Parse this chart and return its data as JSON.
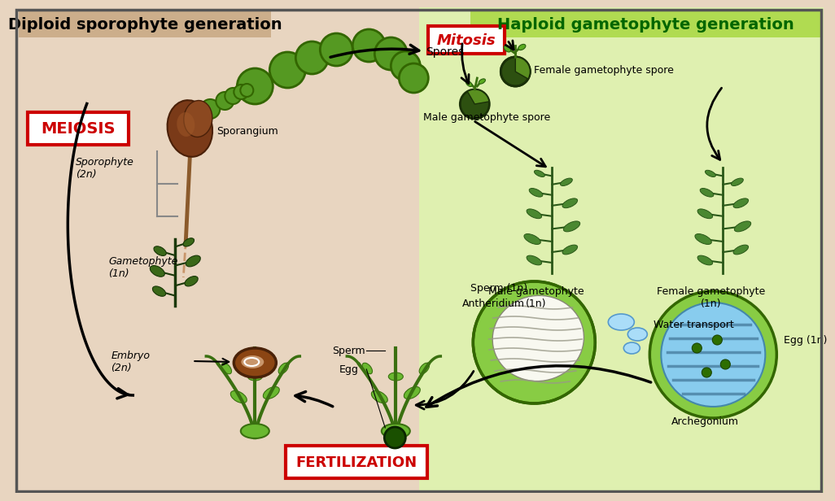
{
  "left_bg_color": "#e8d5c0",
  "right_bg_color": "#dff0b0",
  "left_title": "Diploid sporophyte generation",
  "right_title": "Haploid gametophyte generation",
  "left_title_bg": "#c8a882",
  "right_title_bg": "#a8d840",
  "left_title_color": "#000000",
  "right_title_color": "#006600",
  "meiosis_box_color": "#cc0000",
  "meiosis_text": "MEIOSIS",
  "mitosis_box_color": "#cc0000",
  "mitosis_text": "Mitosis",
  "fertilization_box_color": "#cc0000",
  "fertilization_text": "FERTILIZATION",
  "dark_green": "#2d6e00",
  "spore_green": "#336600",
  "spore_fill": "#559922",
  "brown_dark": "#6B3A1F",
  "brown_mid": "#8B5A2B",
  "brown_light": "#c8956a",
  "plant_green": "#4a8c20",
  "plant_dark": "#2d6010",
  "liverwort_green": "#6ab830",
  "liverwort_dark": "#3a7000",
  "arch_blue": "#88ccee",
  "arch_green": "#88cc44",
  "labels": {
    "sporophyte": "Sporophyte\n(2n)",
    "sporangium": "Sporangium",
    "spores": "Spores",
    "gametophyte_left": "Gametophyte\n(1n)",
    "male_spore": "Male gametophyte spore",
    "female_spore": "Female gametophyte spore",
    "male_gametophyte": "Male gametophyte\n(1n)",
    "female_gametophyte": "Female gametophyte\n(1n)",
    "sperm_1n": "Sperm (1n)",
    "antheridium": "Antheridium",
    "water_transport": "Water transport",
    "egg_1n": "Egg (1η)",
    "archegonium": "Archegonium",
    "sperm": "Sperm",
    "egg": "Egg",
    "embryo": "Embryo\n(2n)"
  }
}
